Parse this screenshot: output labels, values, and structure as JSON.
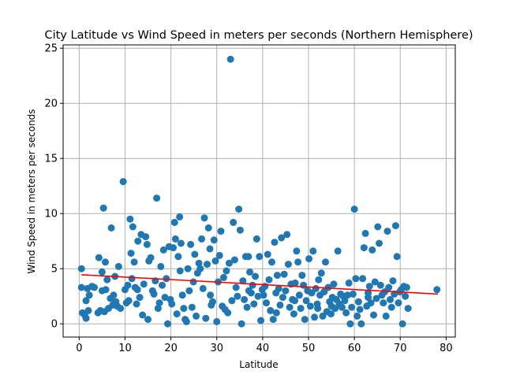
{
  "chart_data": {
    "type": "scatter",
    "title": "City Latitude vs Wind Speed in meters per seconds (Northern Hemisphere)",
    "xlabel": "Latitude",
    "ylabel": "Wind Speed in meters per seconds",
    "xlim": [
      -3.5,
      82
    ],
    "ylim": [
      -1.2,
      25.3
    ],
    "xticks": [
      0,
      10,
      20,
      30,
      40,
      50,
      60,
      70,
      80
    ],
    "yticks": [
      0,
      5,
      10,
      15,
      20,
      25
    ],
    "grid": true,
    "marker_color": "#1f77b4",
    "regression_color": "#ff0000",
    "regression_line": {
      "x": [
        0.5,
        78.2
      ],
      "y": [
        4.45,
        2.7
      ]
    },
    "points": [
      [
        0.5,
        5.0
      ],
      [
        0.5,
        3.3
      ],
      [
        0.7,
        1.0
      ],
      [
        1.2,
        0.8
      ],
      [
        1.5,
        2.1
      ],
      [
        1.5,
        0.5
      ],
      [
        1.8,
        3.2
      ],
      [
        2.0,
        1.2
      ],
      [
        2.2,
        2.6
      ],
      [
        2.8,
        3.4
      ],
      [
        3.3,
        3.3
      ],
      [
        4.1,
        1.0
      ],
      [
        4.3,
        6.0
      ],
      [
        4.6,
        1.2
      ],
      [
        5.0,
        3.0
      ],
      [
        5.0,
        4.7
      ],
      [
        5.3,
        10.5
      ],
      [
        5.5,
        1.1
      ],
      [
        5.7,
        5.6
      ],
      [
        5.8,
        3.1
      ],
      [
        6.1,
        4.0
      ],
      [
        6.4,
        1.4
      ],
      [
        6.8,
        2.3
      ],
      [
        7.0,
        8.7
      ],
      [
        7.3,
        1.7
      ],
      [
        7.5,
        2.6
      ],
      [
        7.8,
        4.3
      ],
      [
        8.0,
        2.0
      ],
      [
        8.3,
        1.6
      ],
      [
        8.6,
        5.2
      ],
      [
        9.0,
        1.4
      ],
      [
        9.6,
        12.9
      ],
      [
        10.0,
        3.1
      ],
      [
        10.3,
        1.9
      ],
      [
        10.6,
        3.5
      ],
      [
        10.8,
        2.1
      ],
      [
        11.1,
        9.5
      ],
      [
        11.3,
        6.4
      ],
      [
        11.5,
        4.1
      ],
      [
        11.7,
        8.8
      ],
      [
        12.0,
        5.6
      ],
      [
        12.2,
        3.3
      ],
      [
        12.5,
        1.8
      ],
      [
        12.8,
        7.5
      ],
      [
        13.2,
        2.4
      ],
      [
        13.5,
        8.1
      ],
      [
        13.8,
        0.8
      ],
      [
        14.1,
        3.6
      ],
      [
        14.5,
        7.9
      ],
      [
        14.8,
        7.2
      ],
      [
        15.0,
        0.4
      ],
      [
        15.2,
        5.7
      ],
      [
        15.6,
        6.0
      ],
      [
        16.0,
        3.0
      ],
      [
        16.3,
        2.7
      ],
      [
        16.6,
        3.9
      ],
      [
        16.9,
        11.4
      ],
      [
        17.2,
        1.4
      ],
      [
        17.5,
        1.9
      ],
      [
        17.8,
        5.2
      ],
      [
        18.1,
        3.5
      ],
      [
        18.4,
        6.7
      ],
      [
        18.7,
        2.4
      ],
      [
        19.0,
        4.1
      ],
      [
        19.3,
        0.0
      ],
      [
        19.6,
        7.0
      ],
      [
        19.9,
        2.2
      ],
      [
        20.2,
        1.8
      ],
      [
        20.5,
        6.9
      ],
      [
        20.8,
        9.2
      ],
      [
        21.0,
        7.7
      ],
      [
        21.3,
        0.9
      ],
      [
        21.6,
        6.1
      ],
      [
        21.9,
        9.7
      ],
      [
        22.2,
        7.3
      ],
      [
        22.5,
        2.6
      ],
      [
        22.8,
        1.4
      ],
      [
        23.1,
        0.4
      ],
      [
        23.4,
        0.2
      ],
      [
        23.7,
        5.0
      ],
      [
        24.0,
        3.0
      ],
      [
        24.3,
        7.2
      ],
      [
        24.6,
        1.5
      ],
      [
        24.9,
        3.8
      ],
      [
        25.2,
        6.3
      ],
      [
        25.5,
        0.7
      ],
      [
        25.8,
        4.6
      ],
      [
        26.1,
        5.5
      ],
      [
        26.4,
        5.0
      ],
      [
        26.7,
        7.7
      ],
      [
        27.0,
        3.2
      ],
      [
        27.3,
        9.6
      ],
      [
        27.6,
        0.5
      ],
      [
        27.9,
        5.4
      ],
      [
        28.2,
        8.7
      ],
      [
        28.5,
        6.8
      ],
      [
        28.8,
        1.7
      ],
      [
        29.1,
        2.0
      ],
      [
        29.4,
        7.6
      ],
      [
        29.7,
        5.7
      ],
      [
        30.0,
        0.2
      ],
      [
        30.3,
        3.8
      ],
      [
        30.6,
        6.2
      ],
      [
        30.9,
        8.4
      ],
      [
        31.2,
        1.6
      ],
      [
        31.5,
        4.2
      ],
      [
        31.8,
        1.3
      ],
      [
        32.1,
        4.8
      ],
      [
        32.4,
        1.0
      ],
      [
        32.7,
        5.5
      ],
      [
        33.0,
        24.0
      ],
      [
        33.3,
        2.1
      ],
      [
        33.6,
        9.2
      ],
      [
        33.9,
        5.8
      ],
      [
        34.2,
        3.3
      ],
      [
        34.5,
        2.5
      ],
      [
        34.8,
        10.4
      ],
      [
        35.1,
        8.5
      ],
      [
        35.4,
        0.0
      ],
      [
        35.7,
        3.9
      ],
      [
        36.0,
        2.2
      ],
      [
        36.3,
        6.1
      ],
      [
        36.6,
        1.5
      ],
      [
        36.9,
        6.1
      ],
      [
        37.2,
        4.7
      ],
      [
        37.5,
        2.8
      ],
      [
        37.8,
        3.5
      ],
      [
        38.1,
        1.8
      ],
      [
        38.4,
        4.3
      ],
      [
        38.7,
        7.7
      ],
      [
        39.0,
        2.5
      ],
      [
        39.3,
        6.1
      ],
      [
        39.6,
        0.3
      ],
      [
        39.9,
        3.1
      ],
      [
        40.2,
        2.6
      ],
      [
        40.5,
        3.4
      ],
      [
        40.8,
        1.9
      ],
      [
        41.1,
        6.3
      ],
      [
        41.4,
        4.0
      ],
      [
        41.7,
        1.2
      ],
      [
        42.0,
        5.6
      ],
      [
        42.3,
        0.4
      ],
      [
        42.6,
        7.4
      ],
      [
        42.9,
        2.8
      ],
      [
        43.2,
        4.4
      ],
      [
        43.5,
        3.2
      ],
      [
        43.8,
        1.7
      ],
      [
        44.1,
        7.8
      ],
      [
        44.4,
        2.4
      ],
      [
        44.7,
        4.5
      ],
      [
        45.0,
        3.0
      ],
      [
        45.3,
        8.1
      ],
      [
        45.6,
        5.4
      ],
      [
        45.9,
        1.5
      ],
      [
        46.2,
        3.6
      ],
      [
        46.5,
        2.2
      ],
      [
        46.8,
        0.9
      ],
      [
        47.1,
        3.7
      ],
      [
        47.4,
        6.6
      ],
      [
        47.7,
        5.6
      ],
      [
        48.0,
        2.6
      ],
      [
        48.3,
        1.4
      ],
      [
        48.6,
        4.4
      ],
      [
        48.9,
        3.5
      ],
      [
        49.2,
        0.4
      ],
      [
        49.5,
        2.1
      ],
      [
        49.8,
        3.0
      ],
      [
        50.1,
        5.9
      ],
      [
        50.4,
        1.6
      ],
      [
        50.7,
        2.8
      ],
      [
        51.0,
        6.6
      ],
      [
        51.3,
        0.6
      ],
      [
        51.6,
        3.2
      ],
      [
        51.9,
        1.8
      ],
      [
        52.2,
        4.0
      ],
      [
        52.5,
        2.6
      ],
      [
        52.8,
        4.6
      ],
      [
        53.1,
        0.7
      ],
      [
        53.4,
        2.9
      ],
      [
        53.7,
        5.6
      ],
      [
        54.0,
        1.1
      ],
      [
        54.3,
        3.3
      ],
      [
        54.6,
        2.0
      ],
      [
        54.9,
        0.9
      ],
      [
        55.2,
        2.4
      ],
      [
        55.5,
        3.6
      ],
      [
        55.8,
        1.4
      ],
      [
        56.1,
        2.2
      ],
      [
        56.4,
        6.6
      ],
      [
        56.7,
        1.8
      ],
      [
        57.0,
        2.7
      ],
      [
        57.3,
        1.5
      ],
      [
        57.6,
        2.5
      ],
      [
        57.9,
        2.1
      ],
      [
        58.2,
        1.0
      ],
      [
        58.5,
        2.6
      ],
      [
        58.8,
        3.7
      ],
      [
        59.1,
        0.0
      ],
      [
        59.4,
        1.5
      ],
      [
        59.7,
        2.7
      ],
      [
        60.0,
        10.4
      ],
      [
        60.3,
        4.1
      ],
      [
        60.6,
        0.7
      ],
      [
        60.9,
        2.0
      ],
      [
        61.2,
        1.3
      ],
      [
        61.5,
        0.0
      ],
      [
        61.8,
        4.1
      ],
      [
        62.1,
        6.9
      ],
      [
        62.4,
        8.2
      ],
      [
        62.7,
        1.6
      ],
      [
        63.0,
        2.8
      ],
      [
        63.3,
        3.4
      ],
      [
        63.6,
        1.9
      ],
      [
        63.9,
        6.7
      ],
      [
        64.2,
        0.8
      ],
      [
        64.5,
        3.8
      ],
      [
        64.8,
        2.3
      ],
      [
        65.1,
        8.8
      ],
      [
        65.4,
        7.3
      ],
      [
        65.7,
        3.5
      ],
      [
        66.0,
        2.6
      ],
      [
        66.3,
        1.9
      ],
      [
        66.6,
        2.9
      ],
      [
        66.9,
        0.7
      ],
      [
        67.2,
        8.4
      ],
      [
        67.5,
        3.3
      ],
      [
        67.8,
        2.2
      ],
      [
        68.1,
        1.5
      ],
      [
        68.4,
        3.9
      ],
      [
        68.7,
        2.7
      ],
      [
        69.0,
        8.9
      ],
      [
        69.3,
        6.1
      ],
      [
        69.6,
        1.9
      ],
      [
        69.9,
        2.9
      ],
      [
        70.2,
        3.1
      ],
      [
        70.5,
        0.0
      ],
      [
        70.8,
        3.4
      ],
      [
        71.1,
        2.5
      ],
      [
        71.4,
        3.3
      ],
      [
        71.7,
        1.4
      ],
      [
        78.0,
        3.1
      ],
      [
        12.7,
        3.1
      ],
      [
        22.0,
        4.8
      ],
      [
        28.6,
        2.6
      ],
      [
        37.0,
        3.0
      ],
      [
        43.0,
        1.0
      ],
      [
        47.0,
        2.1
      ],
      [
        52.0,
        1.4
      ],
      [
        55.0,
        1.6
      ],
      [
        63.0,
        2.4
      ]
    ]
  }
}
